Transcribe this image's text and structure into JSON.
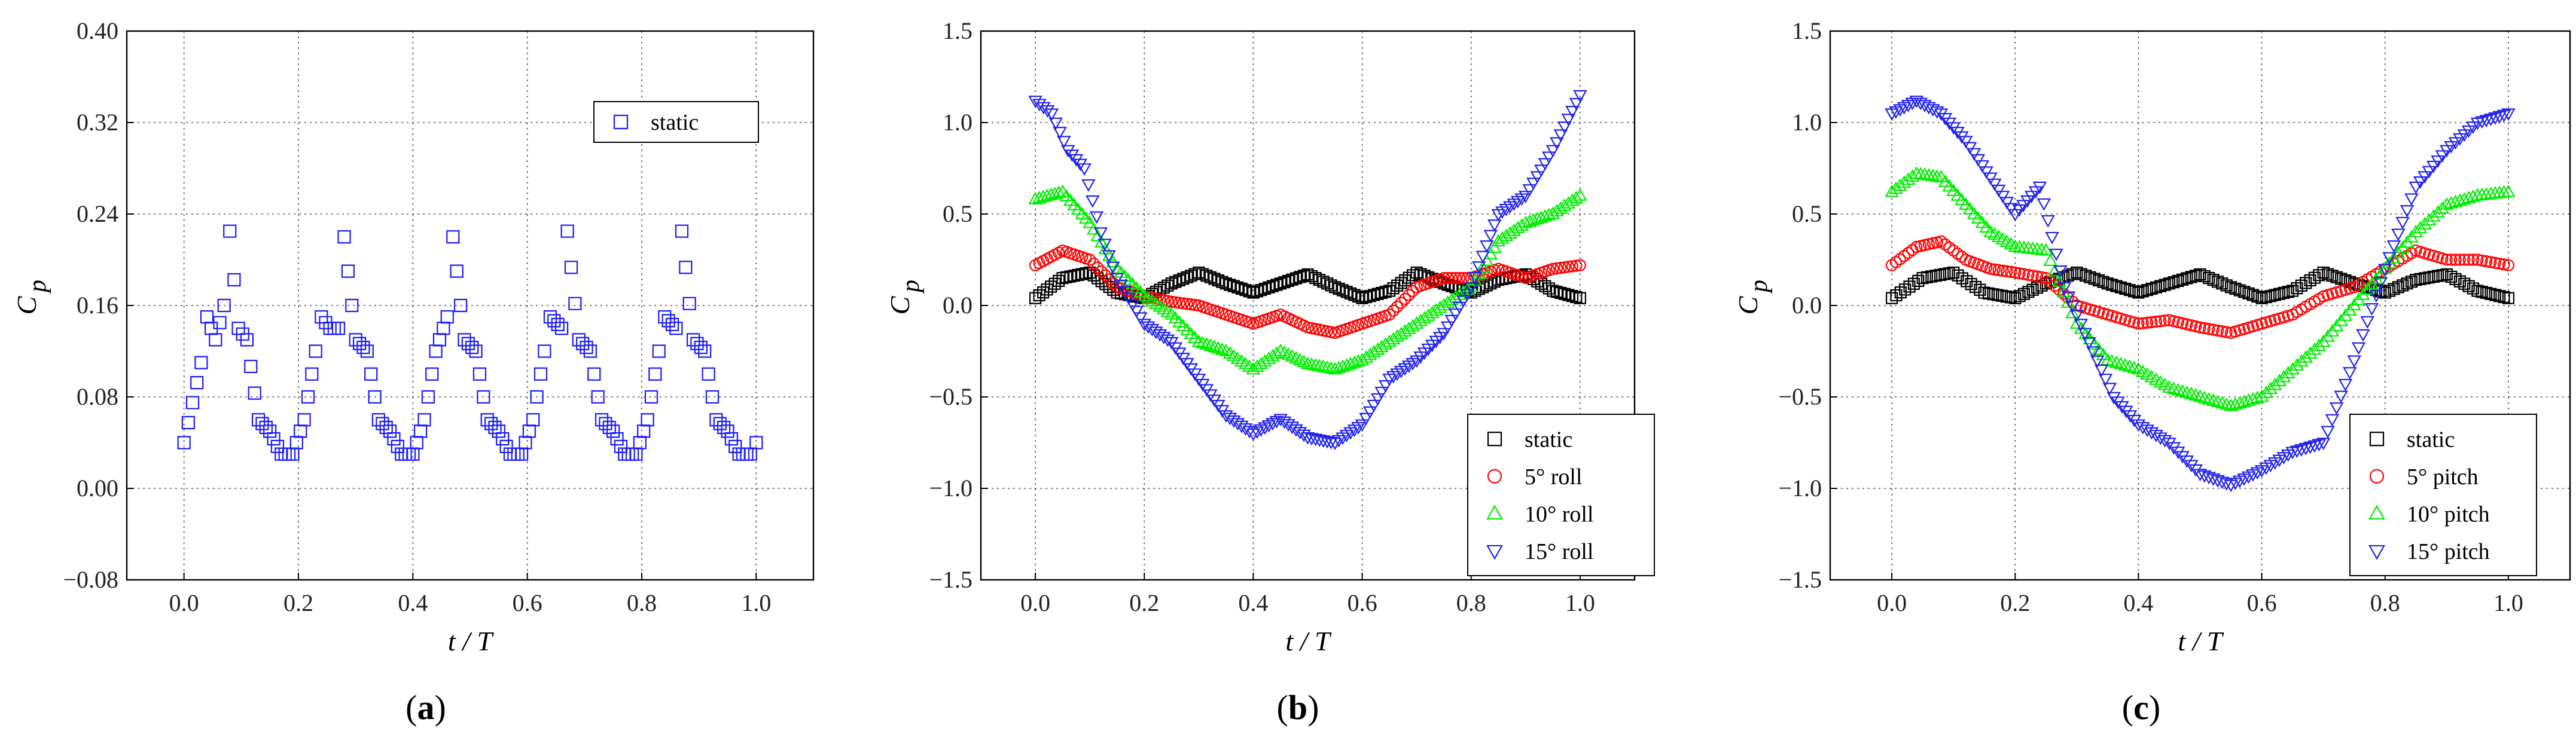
{
  "chart_data": [
    {
      "type": "scatter",
      "panel_label": "a",
      "title": "",
      "xlabel": "t / T",
      "ylabel": "C",
      "ylabel_sub": "p",
      "xlim": [
        -0.1,
        1.1
      ],
      "ylim": [
        -0.08,
        0.4
      ],
      "xticks": [
        0.0,
        0.2,
        0.4,
        0.6,
        0.8,
        1.0
      ],
      "xtick_labels": [
        "0.0",
        "0.2",
        "0.4",
        "0.6",
        "0.8",
        "1.0"
      ],
      "yticks": [
        -0.08,
        0.0,
        0.08,
        0.16,
        0.24,
        0.32,
        0.4
      ],
      "ytick_labels": [
        "−0.08",
        "0.00",
        "0.08",
        "0.16",
        "0.24",
        "0.32",
        "0.40"
      ],
      "grid": true,
      "legend_position": "top-right",
      "series": [
        {
          "name": "static",
          "marker": "square",
          "color": "#1a1aff",
          "x": [
            0.0,
            0.03,
            0.04,
            0.055,
            0.07,
            0.08,
            0.095,
            0.11,
            0.13,
            0.15,
            0.17,
            0.19,
            0.21,
            0.23,
            0.24,
            0.255,
            0.27,
            0.28,
            0.3,
            0.32,
            0.34,
            0.36,
            0.38,
            0.4,
            0.42,
            0.44,
            0.46,
            0.47,
            0.49,
            0.51,
            0.53,
            0.55,
            0.57,
            0.59,
            0.61,
            0.63,
            0.64,
            0.66,
            0.67,
            0.69,
            0.71,
            0.73,
            0.75,
            0.77,
            0.79,
            0.81,
            0.83,
            0.84,
            0.86,
            0.87,
            0.89,
            0.91,
            0.93,
            0.95,
            0.97,
            0.99,
            1.0
          ],
          "y": [
            0.04,
            0.11,
            0.15,
            0.13,
            0.16,
            0.225,
            0.14,
            0.13,
            0.06,
            0.05,
            0.03,
            0.03,
            0.06,
            0.12,
            0.15,
            0.14,
            0.14,
            0.22,
            0.13,
            0.12,
            0.06,
            0.05,
            0.03,
            0.03,
            0.06,
            0.12,
            0.15,
            0.22,
            0.13,
            0.12,
            0.06,
            0.05,
            0.03,
            0.03,
            0.06,
            0.12,
            0.15,
            0.14,
            0.225,
            0.13,
            0.12,
            0.06,
            0.05,
            0.03,
            0.03,
            0.06,
            0.12,
            0.15,
            0.14,
            0.225,
            0.13,
            0.12,
            0.06,
            0.05,
            0.03,
            0.03,
            0.04
          ]
        }
      ]
    },
    {
      "type": "scatter",
      "panel_label": "b",
      "title": "",
      "xlabel": "t / T",
      "ylabel": "C",
      "ylabel_sub": "p",
      "xlim": [
        -0.1,
        1.1
      ],
      "ylim": [
        -1.5,
        1.5
      ],
      "xticks": [
        0.0,
        0.2,
        0.4,
        0.6,
        0.8,
        1.0
      ],
      "xtick_labels": [
        "0.0",
        "0.2",
        "0.4",
        "0.6",
        "0.8",
        "1.0"
      ],
      "yticks": [
        -1.5,
        -1.0,
        -0.5,
        0.0,
        0.5,
        1.0,
        1.5
      ],
      "ytick_labels": [
        "−1.5",
        "−1.0",
        "−0.5",
        "0.0",
        "0.5",
        "1.0",
        "1.5"
      ],
      "grid": true,
      "legend_position": "bottom-right",
      "series": [
        {
          "name": "static",
          "marker": "square",
          "color": "#000000",
          "x": [
            0.0,
            0.05,
            0.1,
            0.15,
            0.2,
            0.25,
            0.3,
            0.35,
            0.4,
            0.45,
            0.5,
            0.55,
            0.6,
            0.65,
            0.7,
            0.75,
            0.8,
            0.85,
            0.9,
            0.95,
            1.0
          ],
          "y": [
            0.04,
            0.15,
            0.18,
            0.07,
            0.04,
            0.12,
            0.18,
            0.12,
            0.07,
            0.12,
            0.17,
            0.1,
            0.04,
            0.08,
            0.18,
            0.12,
            0.07,
            0.14,
            0.17,
            0.08,
            0.04
          ]
        },
        {
          "name": "5° roll",
          "marker": "circle",
          "color": "#ff0000",
          "x": [
            0.0,
            0.05,
            0.1,
            0.15,
            0.2,
            0.25,
            0.3,
            0.35,
            0.4,
            0.45,
            0.5,
            0.55,
            0.6,
            0.65,
            0.7,
            0.75,
            0.8,
            0.85,
            0.9,
            0.95,
            1.0
          ],
          "y": [
            0.22,
            0.3,
            0.25,
            0.1,
            0.05,
            0.02,
            0.0,
            -0.05,
            -0.1,
            -0.05,
            -0.12,
            -0.15,
            -0.1,
            -0.05,
            0.1,
            0.15,
            0.15,
            0.2,
            0.15,
            0.2,
            0.22
          ]
        },
        {
          "name": "10° roll",
          "marker": "triangle-up",
          "color": "#00ee00",
          "x": [
            0.0,
            0.05,
            0.1,
            0.15,
            0.2,
            0.25,
            0.3,
            0.35,
            0.4,
            0.45,
            0.5,
            0.55,
            0.6,
            0.65,
            0.7,
            0.75,
            0.8,
            0.85,
            0.9,
            0.95,
            1.0
          ],
          "y": [
            0.58,
            0.62,
            0.45,
            0.2,
            0.05,
            -0.05,
            -0.2,
            -0.25,
            -0.35,
            -0.25,
            -0.32,
            -0.35,
            -0.3,
            -0.2,
            -0.1,
            0.0,
            0.1,
            0.35,
            0.45,
            0.5,
            0.6
          ]
        },
        {
          "name": "15° roll",
          "marker": "triangle-down",
          "color": "#2222ee",
          "x": [
            0.0,
            0.03,
            0.06,
            0.09,
            0.12,
            0.15,
            0.2,
            0.25,
            0.3,
            0.35,
            0.4,
            0.45,
            0.5,
            0.55,
            0.6,
            0.65,
            0.7,
            0.75,
            0.8,
            0.85,
            0.9,
            0.95,
            1.0
          ],
          "y": [
            1.12,
            1.05,
            0.85,
            0.75,
            0.4,
            0.15,
            -0.1,
            -0.2,
            -0.4,
            -0.6,
            -0.7,
            -0.62,
            -0.72,
            -0.75,
            -0.65,
            -0.4,
            -0.3,
            -0.15,
            0.1,
            0.5,
            0.6,
            0.85,
            1.15
          ]
        }
      ]
    },
    {
      "type": "scatter",
      "panel_label": "c",
      "title": "",
      "xlabel": "t / T",
      "ylabel": "C",
      "ylabel_sub": "p",
      "xlim": [
        -0.1,
        1.1
      ],
      "ylim": [
        -1.5,
        1.5
      ],
      "xticks": [
        0.0,
        0.2,
        0.4,
        0.6,
        0.8,
        1.0
      ],
      "xtick_labels": [
        "0.0",
        "0.2",
        "0.4",
        "0.6",
        "0.8",
        "1.0"
      ],
      "yticks": [
        -1.5,
        -1.0,
        -0.5,
        0.0,
        0.5,
        1.0,
        1.5
      ],
      "ytick_labels": [
        "−1.5",
        "−1.0",
        "−0.5",
        "0.0",
        "0.5",
        "1.0",
        "1.5"
      ],
      "grid": true,
      "legend_position": "bottom-right",
      "series": [
        {
          "name": "static",
          "marker": "square",
          "color": "#000000",
          "x": [
            0.0,
            0.05,
            0.1,
            0.15,
            0.2,
            0.25,
            0.3,
            0.35,
            0.4,
            0.45,
            0.5,
            0.55,
            0.6,
            0.65,
            0.7,
            0.75,
            0.8,
            0.85,
            0.9,
            0.95,
            1.0
          ],
          "y": [
            0.04,
            0.15,
            0.18,
            0.07,
            0.04,
            0.12,
            0.18,
            0.12,
            0.07,
            0.12,
            0.17,
            0.1,
            0.04,
            0.08,
            0.18,
            0.12,
            0.07,
            0.14,
            0.17,
            0.08,
            0.04
          ]
        },
        {
          "name": "5° pitch",
          "marker": "circle",
          "color": "#ff0000",
          "x": [
            0.0,
            0.04,
            0.08,
            0.12,
            0.16,
            0.2,
            0.25,
            0.3,
            0.35,
            0.4,
            0.45,
            0.5,
            0.55,
            0.6,
            0.65,
            0.7,
            0.75,
            0.8,
            0.85,
            0.9,
            0.95,
            1.0
          ],
          "y": [
            0.22,
            0.32,
            0.35,
            0.25,
            0.2,
            0.18,
            0.15,
            0.0,
            -0.05,
            -0.1,
            -0.08,
            -0.12,
            -0.15,
            -0.1,
            -0.05,
            0.05,
            0.1,
            0.2,
            0.3,
            0.25,
            0.25,
            0.22
          ]
        },
        {
          "name": "10° pitch",
          "marker": "triangle-up",
          "color": "#00ee00",
          "x": [
            0.0,
            0.04,
            0.08,
            0.12,
            0.16,
            0.2,
            0.25,
            0.3,
            0.35,
            0.4,
            0.45,
            0.5,
            0.55,
            0.6,
            0.65,
            0.7,
            0.75,
            0.8,
            0.85,
            0.9,
            0.95,
            1.0
          ],
          "y": [
            0.62,
            0.72,
            0.7,
            0.55,
            0.4,
            0.32,
            0.3,
            -0.1,
            -0.3,
            -0.35,
            -0.45,
            -0.5,
            -0.55,
            -0.5,
            -0.35,
            -0.2,
            0.0,
            0.2,
            0.4,
            0.55,
            0.6,
            0.62
          ]
        },
        {
          "name": "15° pitch",
          "marker": "triangle-down",
          "color": "#2222ee",
          "x": [
            0.0,
            0.04,
            0.08,
            0.12,
            0.16,
            0.2,
            0.24,
            0.28,
            0.32,
            0.36,
            0.4,
            0.45,
            0.5,
            0.55,
            0.6,
            0.65,
            0.7,
            0.75,
            0.8,
            0.85,
            0.9,
            0.95,
            1.0
          ],
          "y": [
            1.05,
            1.12,
            1.05,
            0.9,
            0.7,
            0.5,
            0.65,
            0.1,
            -0.2,
            -0.5,
            -0.65,
            -0.75,
            -0.92,
            -0.98,
            -0.9,
            -0.8,
            -0.75,
            -0.3,
            0.2,
            0.65,
            0.85,
            1.0,
            1.05
          ]
        }
      ]
    }
  ],
  "captions": [
    "a",
    "b",
    "c"
  ]
}
